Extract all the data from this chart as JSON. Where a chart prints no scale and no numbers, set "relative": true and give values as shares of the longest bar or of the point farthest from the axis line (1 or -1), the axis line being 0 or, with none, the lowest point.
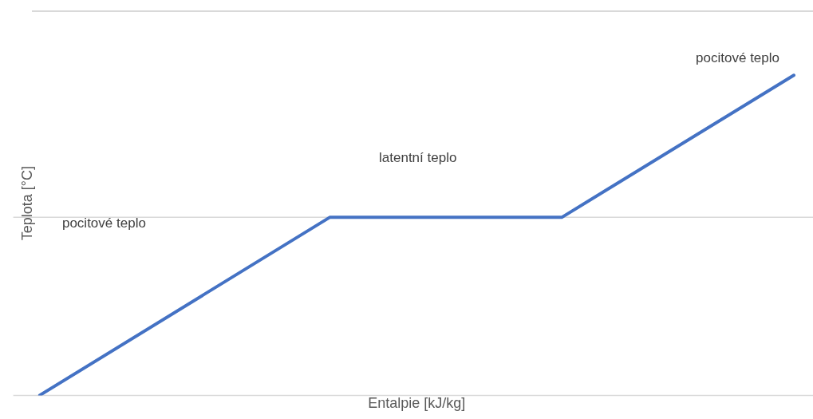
{
  "chart_data": {
    "type": "line",
    "relative": true,
    "xlabel": "Entalpie [kJ/kg]",
    "ylabel": "Teplota [°C]",
    "categories": [
      null,
      null,
      null,
      null,
      null,
      null,
      null,
      null,
      null,
      null,
      null,
      null,
      null,
      null
    ],
    "series": [
      {
        "color": "#4472c4",
        "values": [
          0,
          null,
          null,
          null,
          null,
          0.556,
          null,
          null,
          null,
          0.556,
          null,
          null,
          null,
          1
        ]
      }
    ],
    "annotations": [
      "pocitové teplo",
      "latentní teplo",
      "pocitové teplo"
    ],
    "ref_lines": [
      {
        "axis": "y",
        "value": 0,
        "color": "#d9d9d9"
      },
      {
        "axis": "y",
        "value": 0.556,
        "color": "#d9d9d9"
      }
    ],
    "legend": false,
    "marker": "none",
    "line_style": "solid"
  }
}
